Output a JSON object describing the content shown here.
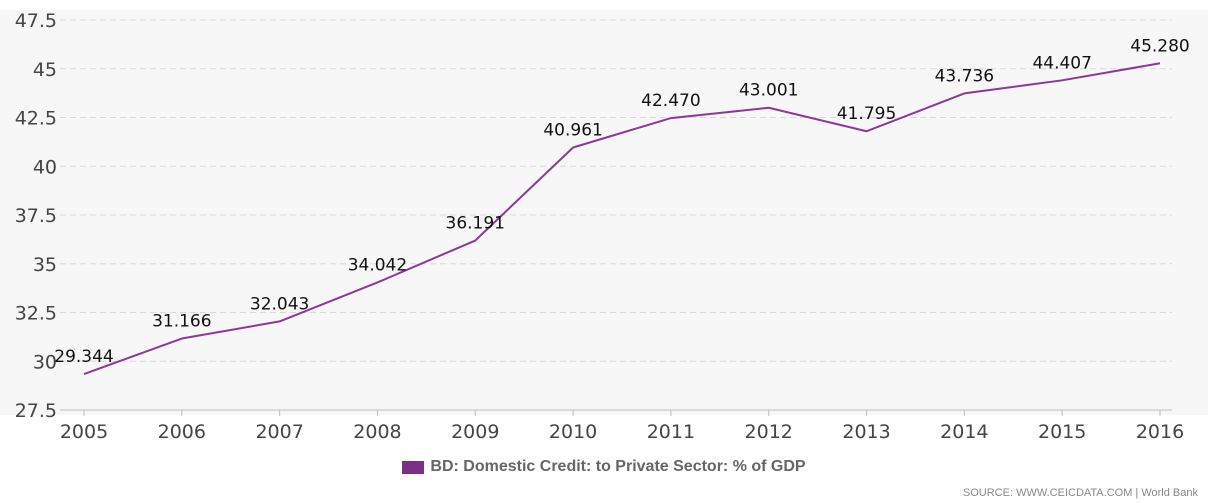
{
  "chart_data": {
    "type": "line",
    "x": [
      "2005",
      "2006",
      "2007",
      "2008",
      "2009",
      "2010",
      "2011",
      "2012",
      "2013",
      "2014",
      "2015",
      "2016"
    ],
    "series": [
      {
        "name": "BD: Domestic Credit: to Private Sector: % of GDP",
        "color": "#8a3a94",
        "values": [
          29.344,
          31.166,
          32.043,
          34.042,
          36.191,
          40.961,
          42.47,
          43.001,
          41.795,
          43.736,
          44.407,
          45.28
        ],
        "labels": [
          "29.344",
          "31.166",
          "32.043",
          "34.042",
          "36.191",
          "40.961",
          "42.470",
          "43.001",
          "41.795",
          "43.736",
          "44.407",
          "45.280"
        ]
      }
    ],
    "yticks": [
      "27.5",
      "30",
      "32.5",
      "35",
      "37.5",
      "40",
      "42.5",
      "45",
      "47.5"
    ],
    "ylim": [
      27.5,
      47.5
    ],
    "grid": true,
    "legend_position": "bottom"
  },
  "legend": {
    "label": "BD: Domestic Credit: to Private Sector: % of GDP",
    "color": "#7b2f86"
  },
  "source": "SOURCE: WWW.CEICDATA.COM | World Bank"
}
